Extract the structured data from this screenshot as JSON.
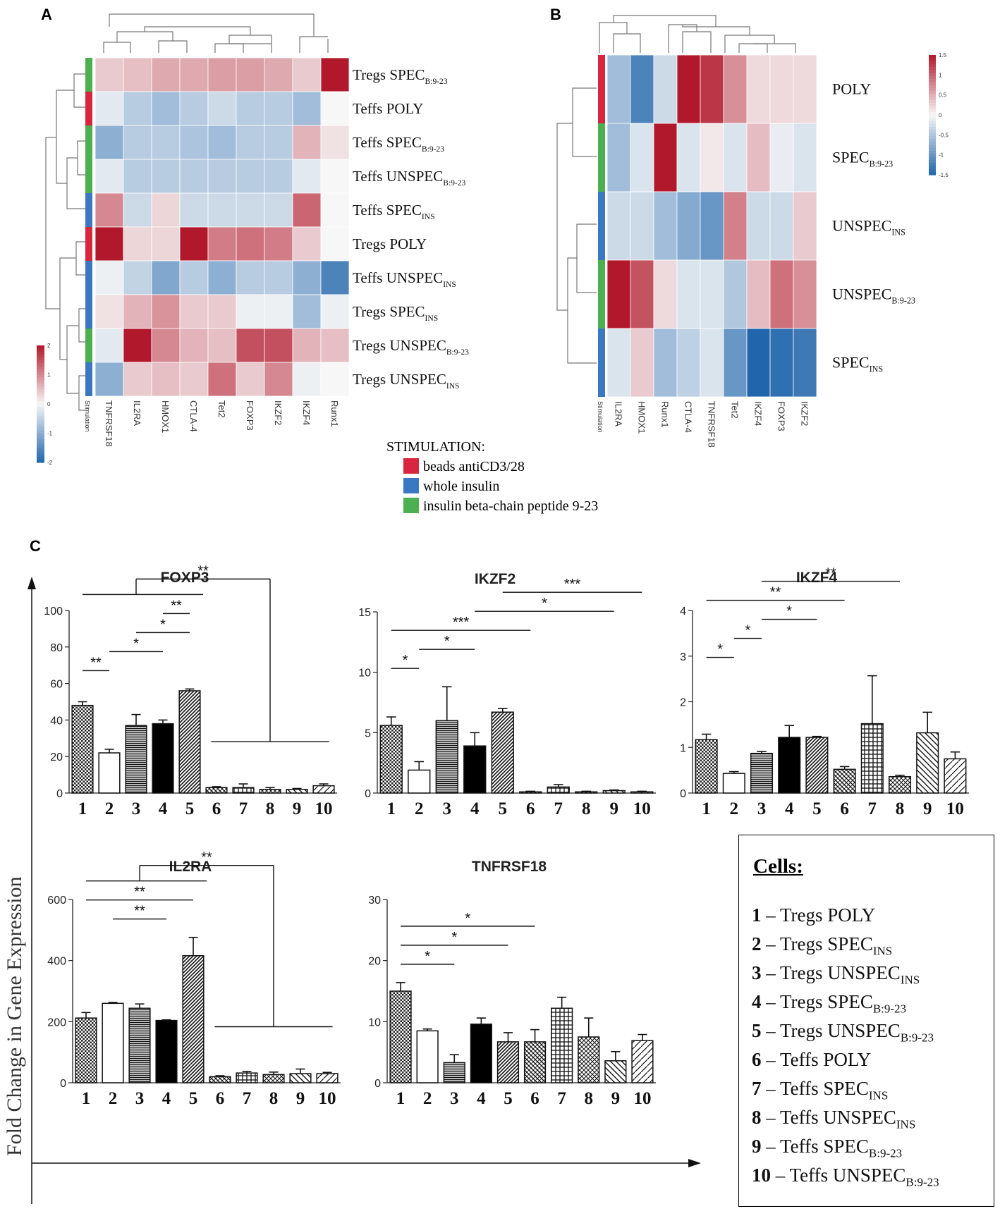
{
  "panel_labels": {
    "a": "A",
    "b": "B",
    "c": "C"
  },
  "stimulation_legend": {
    "title": "STIMULATION:",
    "items": [
      {
        "label": "beads antiCD3/28",
        "color": "#d7263d"
      },
      {
        "label": "whole insulin",
        "color": "#3a78c2"
      },
      {
        "label": "insulin beta-chain peptide 9-23",
        "color": "#4caf50"
      }
    ]
  },
  "y_axis_label": "Fold Change in Gene Expression",
  "cells_box": {
    "title": "Cells:",
    "items": [
      {
        "num": "1",
        "cell": "Tregs",
        "name": "POLY",
        "sub": ""
      },
      {
        "num": "2",
        "cell": "Tregs",
        "name": "SPEC",
        "sub": "INS"
      },
      {
        "num": "3",
        "cell": "Tregs",
        "name": "UNSPEC",
        "sub": "INS"
      },
      {
        "num": "4",
        "cell": "Tregs",
        "name": "SPEC",
        "sub": "B:9-23"
      },
      {
        "num": "5",
        "cell": "Tregs",
        "name": "UNSPEC",
        "sub": "B:9-23"
      },
      {
        "num": "6",
        "cell": "Teffs",
        "name": "POLY",
        "sub": ""
      },
      {
        "num": "7",
        "cell": "Teffs",
        "name": "SPEC",
        "sub": "INS"
      },
      {
        "num": "8",
        "cell": "Teffs",
        "name": "UNSPEC",
        "sub": "INS"
      },
      {
        "num": "9",
        "cell": "Teffs",
        "name": "SPEC",
        "sub": "B:9-23"
      },
      {
        "num": "10",
        "cell": "Teffs",
        "name": "UNSPEC",
        "sub": "B:9-23"
      }
    ]
  },
  "chart_data": [
    {
      "type": "heatmap",
      "panel": "A",
      "columns": [
        "Stimulation",
        "TNFRSF18",
        "IL2RA",
        "HMOX1",
        "CTLA-4",
        "Tet2",
        "FOXP3",
        "IKZF2",
        "IKZF4",
        "Runx1"
      ],
      "rows": [
        {
          "name": "Tregs SPEC",
          "sub": "B:9-23",
          "stim": "green",
          "values": [
            0.4,
            0.5,
            0.7,
            0.7,
            0.8,
            0.8,
            0.7,
            0.4,
            2.0
          ]
        },
        {
          "name": "Teffs POLY",
          "sub": "",
          "stim": "red",
          "values": [
            -0.2,
            -0.6,
            -0.8,
            -0.6,
            -0.4,
            -0.6,
            -0.6,
            -0.8,
            0.0
          ]
        },
        {
          "name": "Teffs SPEC",
          "sub": "B:9-23",
          "stim": "green",
          "values": [
            -1.0,
            -0.6,
            -0.6,
            -0.7,
            -0.8,
            -0.6,
            -0.6,
            0.6,
            0.2
          ]
        },
        {
          "name": "Teffs UNSPEC",
          "sub": "B:9-23",
          "stim": "green",
          "values": [
            -0.2,
            -0.6,
            -0.6,
            -0.6,
            -0.6,
            -0.6,
            -0.6,
            -0.2,
            0.0
          ]
        },
        {
          "name": "Teffs SPEC",
          "sub": "INS",
          "stim": "blue",
          "values": [
            1.0,
            -0.4,
            0.3,
            -0.4,
            -0.4,
            -0.4,
            -0.4,
            1.3,
            0.0
          ]
        },
        {
          "name": "Tregs POLY",
          "sub": "",
          "stim": "red",
          "values": [
            2.0,
            0.3,
            0.3,
            2.0,
            1.1,
            1.2,
            1.1,
            0.4,
            0.0
          ]
        },
        {
          "name": "Teffs UNSPEC",
          "sub": "INS",
          "stim": "blue",
          "values": [
            -0.1,
            -0.5,
            -1.1,
            -0.6,
            -1.0,
            -0.6,
            -0.6,
            -1.0,
            -1.6
          ]
        },
        {
          "name": "Tregs SPEC",
          "sub": "INS",
          "stim": "blue",
          "values": [
            0.2,
            0.6,
            0.9,
            0.4,
            0.4,
            -0.1,
            -0.1,
            -0.8,
            -0.1
          ]
        },
        {
          "name": "Tregs UNSPEC",
          "sub": "B:9-23",
          "stim": "green",
          "values": [
            -0.2,
            2.0,
            1.0,
            0.6,
            0.5,
            1.5,
            1.5,
            0.6,
            0.5
          ]
        },
        {
          "name": "Tregs UNSPEC",
          "sub": "INS",
          "stim": "blue",
          "values": [
            -1.0,
            0.4,
            0.5,
            0.4,
            1.2,
            0.4,
            1.0,
            -0.1,
            0.0
          ]
        }
      ],
      "colorbar": {
        "min": -2,
        "max": 2,
        "ticks": [
          "2",
          "1",
          "0",
          "-1",
          "-2"
        ]
      }
    },
    {
      "type": "heatmap",
      "panel": "B",
      "columns": [
        "Stimulation",
        "IL2RA",
        "HMOX1",
        "Runx1",
        "CTLA-4",
        "TNFRSF18",
        "Tet2",
        "IKZF4",
        "FOXP3",
        "IKZF2"
      ],
      "rows": [
        {
          "name": "POLY",
          "sub": "",
          "stim": "red",
          "values": [
            -0.6,
            -1.2,
            -0.3,
            1.7,
            1.3,
            0.7,
            0.2,
            0.2,
            0.2
          ]
        },
        {
          "name": "SPEC",
          "sub": "B:9-23",
          "stim": "green",
          "values": [
            -0.6,
            -0.2,
            1.5,
            -0.2,
            0.1,
            -0.2,
            0.4,
            -0.1,
            -0.2
          ]
        },
        {
          "name": "UNSPEC",
          "sub": "INS",
          "stim": "blue",
          "values": [
            -0.3,
            -0.3,
            -0.6,
            -0.8,
            -1.0,
            0.8,
            -0.3,
            -0.3,
            0.3
          ]
        },
        {
          "name": "UNSPEC",
          "sub": "B:9-23",
          "stim": "green",
          "values": [
            1.6,
            1.1,
            0.2,
            -0.2,
            -0.2,
            -0.5,
            0.4,
            0.9,
            0.7
          ]
        },
        {
          "name": "SPEC",
          "sub": "INS",
          "stim": "blue",
          "values": [
            -0.2,
            0.3,
            -0.6,
            -0.4,
            -0.2,
            -1.0,
            -1.5,
            -1.4,
            -1.3
          ]
        }
      ],
      "colorbar": {
        "min": -1.5,
        "max": 1.5,
        "ticks": [
          "1.5",
          "1",
          "0.5",
          "0",
          "-0.5",
          "-1",
          "-1.5"
        ]
      }
    },
    {
      "type": "bar",
      "panel": "C",
      "title": "FOXP3",
      "categories": [
        "1",
        "2",
        "3",
        "4",
        "5",
        "6",
        "7",
        "8",
        "9",
        "10"
      ],
      "values": [
        48,
        22,
        37,
        38,
        56,
        3,
        3,
        2,
        2,
        4
      ],
      "errors": [
        2,
        2,
        6,
        2,
        1,
        0.5,
        2,
        1,
        0.5,
        1
      ],
      "ylim": [
        0,
        100
      ],
      "yticks": [
        "0",
        "20",
        "40",
        "60",
        "80",
        "100"
      ],
      "significance": [
        {
          "from": 1,
          "to": 2,
          "label": "**"
        },
        {
          "from": 2,
          "to": 4,
          "label": "*"
        },
        {
          "from": 3,
          "to": 5,
          "label": "*"
        },
        {
          "from": 4,
          "to": 5,
          "label": "**"
        },
        {
          "from": 1,
          "to": 5,
          "label": "**",
          "group_to": [
            6,
            10
          ]
        }
      ]
    },
    {
      "type": "bar",
      "panel": "C",
      "title": "IKZF2",
      "categories": [
        "1",
        "2",
        "3",
        "4",
        "5",
        "6",
        "7",
        "8",
        "9",
        "10"
      ],
      "values": [
        5.6,
        1.9,
        6.0,
        3.9,
        6.7,
        0.1,
        0.5,
        0.1,
        0.2,
        0.1
      ],
      "errors": [
        0.7,
        0.7,
        2.8,
        1.1,
        0.3,
        0.05,
        0.2,
        0.05,
        0.05,
        0.05
      ],
      "ylim": [
        0,
        15
      ],
      "yticks": [
        "0",
        "5",
        "10",
        "15"
      ],
      "significance": [
        {
          "from": 1,
          "to": 2,
          "label": "*"
        },
        {
          "from": 2,
          "to": 4,
          "label": "*"
        },
        {
          "from": 1,
          "to": 6,
          "label": "***"
        },
        {
          "from": 4,
          "to": 9,
          "label": "*"
        },
        {
          "from": 5,
          "to": 10,
          "label": "***"
        }
      ]
    },
    {
      "type": "bar",
      "panel": "C",
      "title": "IKZF4",
      "categories": [
        "1",
        "2",
        "3",
        "4",
        "5",
        "6",
        "7",
        "8",
        "9",
        "10"
      ],
      "values": [
        1.17,
        0.43,
        0.87,
        1.22,
        1.22,
        0.52,
        1.52,
        0.36,
        1.32,
        0.75
      ],
      "errors": [
        0.12,
        0.04,
        0.04,
        0.26,
        0.02,
        0.06,
        1.05,
        0.03,
        0.45,
        0.15
      ],
      "ylim": [
        0,
        4
      ],
      "yticks": [
        "0",
        "1",
        "2",
        "3",
        "4"
      ],
      "significance": [
        {
          "from": 1,
          "to": 2,
          "label": "*"
        },
        {
          "from": 2,
          "to": 3,
          "label": "*"
        },
        {
          "from": 3,
          "to": 5,
          "label": "*"
        },
        {
          "from": 1,
          "to": 6,
          "label": "**"
        },
        {
          "from": 3,
          "to": 8,
          "label": "**"
        }
      ]
    },
    {
      "type": "bar",
      "panel": "C",
      "title": "IL2RA",
      "categories": [
        "1",
        "2",
        "3",
        "4",
        "5",
        "6",
        "7",
        "8",
        "9",
        "10"
      ],
      "values": [
        212,
        260,
        244,
        204,
        416,
        20,
        32,
        27,
        30,
        30
      ],
      "errors": [
        18,
        3,
        14,
        2,
        60,
        3,
        5,
        8,
        15,
        4
      ],
      "ylim": [
        0,
        600
      ],
      "yticks": [
        "0",
        "200",
        "400",
        "600"
      ],
      "significance": [
        {
          "from": 2,
          "to": 4,
          "label": "**"
        },
        {
          "from": 1,
          "to": 5,
          "label": "**"
        },
        {
          "from": 1,
          "to": 5,
          "label": "**",
          "group_to": [
            6,
            10
          ]
        }
      ]
    },
    {
      "type": "bar",
      "panel": "C",
      "title": "TNFRSF18",
      "categories": [
        "1",
        "2",
        "3",
        "4",
        "5",
        "6",
        "7",
        "8",
        "9",
        "10"
      ],
      "values": [
        15,
        8.5,
        3.3,
        9.6,
        6.7,
        6.7,
        12.2,
        7.5,
        3.6,
        6.9
      ],
      "errors": [
        1.4,
        0.3,
        1.3,
        1.0,
        1.5,
        2.0,
        1.8,
        3.1,
        1.5,
        1.0
      ],
      "ylim": [
        0,
        30
      ],
      "yticks": [
        "0",
        "10",
        "20",
        "30"
      ],
      "significance": [
        {
          "from": 1,
          "to": 3,
          "label": "*"
        },
        {
          "from": 1,
          "to": 5,
          "label": "*"
        },
        {
          "from": 1,
          "to": 6,
          "label": "*"
        }
      ]
    }
  ]
}
